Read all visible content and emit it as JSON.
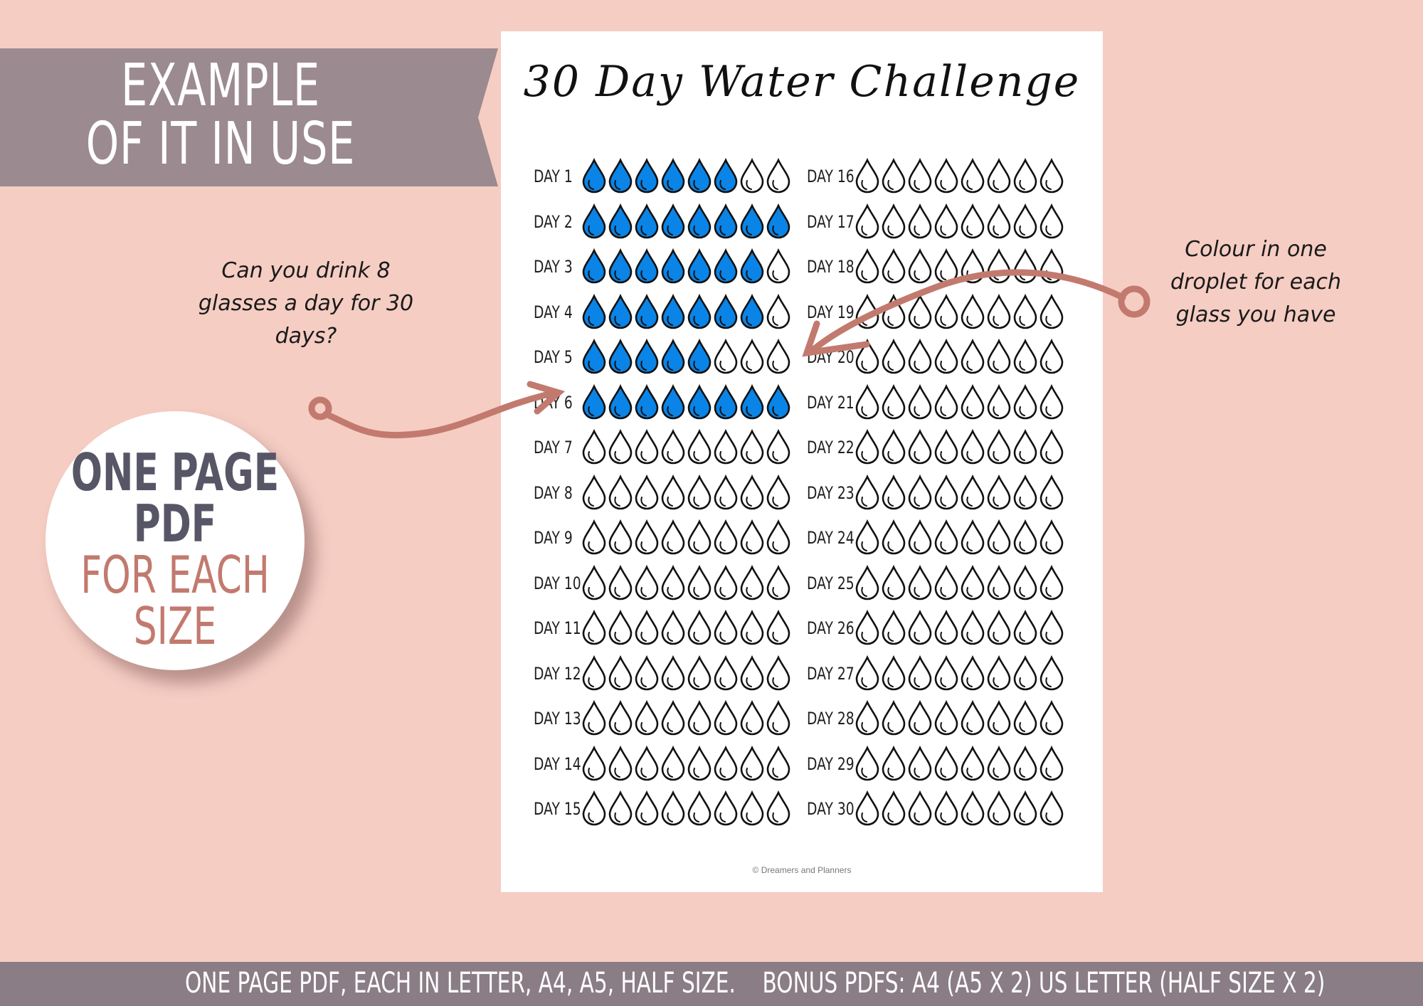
{
  "banner": {
    "line1": "EXAMPLE",
    "line2": "OF IT IN USE"
  },
  "badge": {
    "line1": "ONE PAGE",
    "line2": "PDF",
    "line3": "FOR EACH",
    "line4": "SIZE"
  },
  "notes": {
    "left": "Can you drink 8 glasses a day for 30 days?",
    "right": "Colour in one droplet for each glass you have"
  },
  "tracker": {
    "title": "30 Day Water Challenge",
    "glasses_per_day": 8,
    "filled_color": "#0a84e6",
    "days": [
      {
        "label": "DAY 1",
        "filled": 6
      },
      {
        "label": "DAY 2",
        "filled": 8
      },
      {
        "label": "DAY 3",
        "filled": 7
      },
      {
        "label": "DAY 4",
        "filled": 7
      },
      {
        "label": "DAY 5",
        "filled": 5
      },
      {
        "label": "DAY 6",
        "filled": 8
      },
      {
        "label": "DAY 7",
        "filled": 0
      },
      {
        "label": "DAY 8",
        "filled": 0
      },
      {
        "label": "DAY 9",
        "filled": 0
      },
      {
        "label": "DAY 10",
        "filled": 0
      },
      {
        "label": "DAY 11",
        "filled": 0
      },
      {
        "label": "DAY 12",
        "filled": 0
      },
      {
        "label": "DAY 13",
        "filled": 0
      },
      {
        "label": "DAY 14",
        "filled": 0
      },
      {
        "label": "DAY 15",
        "filled": 0
      },
      {
        "label": "DAY 16",
        "filled": 0
      },
      {
        "label": "DAY 17",
        "filled": 0
      },
      {
        "label": "DAY 18",
        "filled": 0
      },
      {
        "label": "DAY 19",
        "filled": 0
      },
      {
        "label": "DAY 20",
        "filled": 0
      },
      {
        "label": "DAY 21",
        "filled": 0
      },
      {
        "label": "DAY 22",
        "filled": 0
      },
      {
        "label": "DAY 23",
        "filled": 0
      },
      {
        "label": "DAY 24",
        "filled": 0
      },
      {
        "label": "DAY 25",
        "filled": 0
      },
      {
        "label": "DAY 26",
        "filled": 0
      },
      {
        "label": "DAY 27",
        "filled": 0
      },
      {
        "label": "DAY 28",
        "filled": 0
      },
      {
        "label": "DAY 29",
        "filled": 0
      },
      {
        "label": "DAY 30",
        "filled": 0
      }
    ],
    "credit": "© Dreamers and Planners"
  },
  "footer": "ONE PAGE PDF, EACH IN LETTER, A4, A5, HALF SIZE.    BONUS PDFS: A4 (A5 X 2) US LETTER (HALF SIZE X 2)",
  "colors": {
    "background": "#f5cdc3",
    "banner": "#9b8a8f",
    "accent": "#c27a6e",
    "footer": "#8a7d85"
  }
}
